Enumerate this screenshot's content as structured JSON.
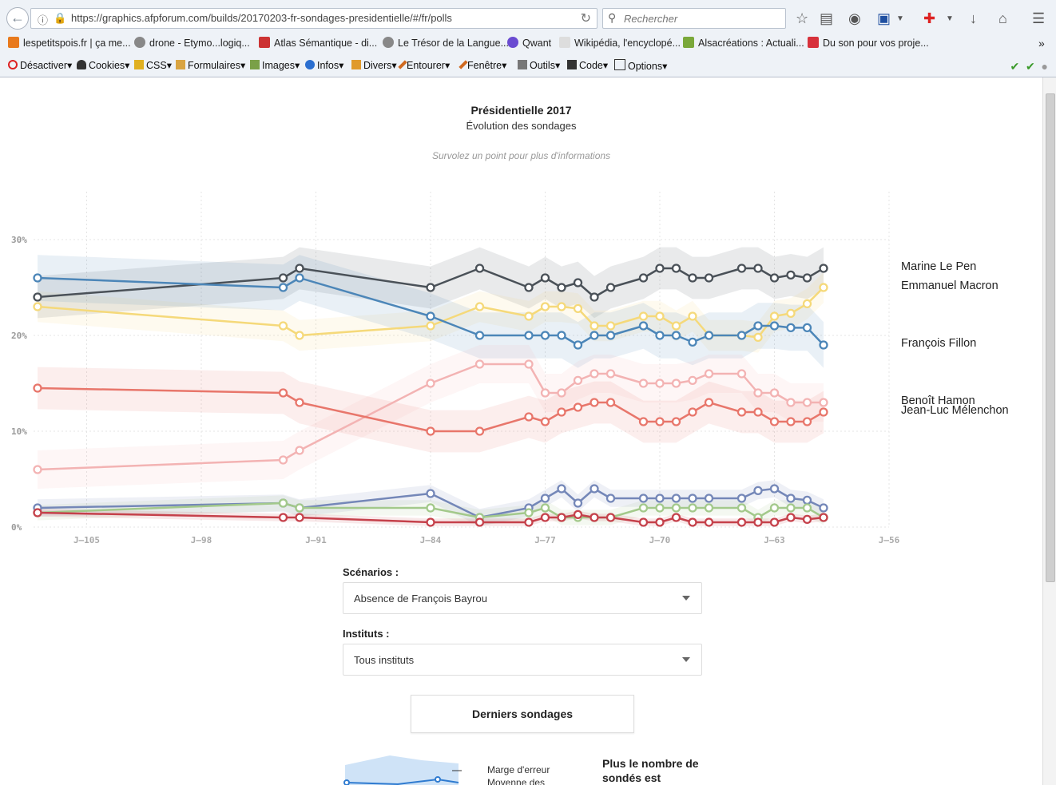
{
  "browser": {
    "url": "https://graphics.afpforum.com/builds/20170203-fr-sondages-presidentielle/#/fr/polls",
    "search_placeholder": "Rechercher",
    "bookmarks": [
      "lespetitspois.fr | ça me...",
      "drone - Etymo...logiq...",
      "Atlas Sémantique - di...",
      "Le Trésor de la Langue...",
      "Qwant",
      "Wikipédia, l'encyclopé...",
      "Alsacréations : Actuali...",
      "Du son pour vos proje..."
    ],
    "dev_menu": [
      "Désactiver",
      "Cookies",
      "CSS",
      "Formulaires",
      "Images",
      "Infos",
      "Divers",
      "Entourer",
      "Fenêtre",
      "Outils",
      "Code",
      "Options"
    ]
  },
  "page": {
    "title": "Présidentielle 2017",
    "subtitle": "Évolution des sondages",
    "hint": "Survolez un point pour plus d'informations",
    "scenarios_label": "Scénarios :",
    "scenarios_value": "Absence de François Bayrou",
    "instituts_label": "Instituts :",
    "instituts_value": "Tous instituts",
    "latest_button": "Derniers sondages",
    "legend_margin": "Marge d'erreur",
    "legend_mean": "Moyenne des",
    "note": "Plus le nombre de sondés est"
  },
  "chart_data": {
    "type": "line",
    "title": "Présidentielle 2017",
    "subtitle": "Évolution des sondages",
    "x_ticks": [
      "J–105",
      "J–98",
      "J–91",
      "J–84",
      "J–77",
      "J–70",
      "J–63",
      "J–56"
    ],
    "x_tick_values": [
      -105,
      -98,
      -91,
      -84,
      -77,
      -70,
      -63,
      -56
    ],
    "y_ticks": [
      "0%",
      "10%",
      "20%",
      "30%"
    ],
    "y_tick_values": [
      0,
      10,
      20,
      30
    ],
    "xlim": [
      -108,
      -56
    ],
    "ylim": [
      0,
      30
    ],
    "grid": true,
    "series": [
      {
        "name": "Marine Le Pen",
        "color": "#4a5158",
        "points": [
          [
            -108,
            24
          ],
          [
            -93,
            26
          ],
          [
            -92,
            27
          ],
          [
            -84,
            25
          ],
          [
            -81,
            27
          ],
          [
            -78,
            25
          ],
          [
            -77,
            26
          ],
          [
            -76,
            25
          ],
          [
            -75,
            25.5
          ],
          [
            -74,
            24
          ],
          [
            -73,
            25
          ],
          [
            -71,
            26
          ],
          [
            -70,
            27
          ],
          [
            -69,
            27
          ],
          [
            -68,
            26
          ],
          [
            -67,
            26
          ],
          [
            -65,
            27
          ],
          [
            -64,
            27
          ],
          [
            -63,
            26
          ],
          [
            -62,
            26.3
          ],
          [
            -61,
            26
          ],
          [
            -60,
            27
          ]
        ],
        "band": 2.2
      },
      {
        "name": "Emmanuel Macron",
        "color": "#f5d97a",
        "points": [
          [
            -108,
            23
          ],
          [
            -93,
            21
          ],
          [
            -92,
            20
          ],
          [
            -84,
            21
          ],
          [
            -81,
            23
          ],
          [
            -78,
            22
          ],
          [
            -77,
            23
          ],
          [
            -76,
            23
          ],
          [
            -75,
            22.8
          ],
          [
            -74,
            21
          ],
          [
            -73,
            21
          ],
          [
            -71,
            22
          ],
          [
            -70,
            22
          ],
          [
            -69,
            21
          ],
          [
            -68,
            22
          ],
          [
            -67,
            20
          ],
          [
            -65,
            20
          ],
          [
            -64,
            19.8
          ],
          [
            -63,
            22
          ],
          [
            -62,
            22.3
          ],
          [
            -61,
            23.3
          ],
          [
            -60,
            25
          ]
        ],
        "band": 1.6
      },
      {
        "name": "François Fillon",
        "color": "#4c86b8",
        "points": [
          [
            -108,
            26
          ],
          [
            -93,
            25
          ],
          [
            -92,
            26
          ],
          [
            -84,
            22
          ],
          [
            -81,
            20
          ],
          [
            -78,
            20
          ],
          [
            -77,
            20
          ],
          [
            -76,
            20
          ],
          [
            -75,
            19
          ],
          [
            -74,
            20
          ],
          [
            -73,
            20
          ],
          [
            -71,
            21
          ],
          [
            -70,
            20
          ],
          [
            -69,
            20
          ],
          [
            -68,
            19.3
          ],
          [
            -67,
            20
          ],
          [
            -65,
            20
          ],
          [
            -64,
            21
          ],
          [
            -63,
            21
          ],
          [
            -62,
            20.8
          ],
          [
            -61,
            20.8
          ],
          [
            -60,
            19
          ]
        ],
        "band": 2.4
      },
      {
        "name": "Benoît Hamon",
        "color": "#f3b3b3",
        "points": [
          [
            -108,
            6
          ],
          [
            -93,
            7
          ],
          [
            -92,
            8
          ],
          [
            -84,
            15
          ],
          [
            -81,
            17
          ],
          [
            -78,
            17
          ],
          [
            -77,
            14
          ],
          [
            -76,
            14
          ],
          [
            -75,
            15.3
          ],
          [
            -74,
            16
          ],
          [
            -73,
            16
          ],
          [
            -71,
            15
          ],
          [
            -70,
            15
          ],
          [
            -69,
            15
          ],
          [
            -68,
            15.3
          ],
          [
            -67,
            16
          ],
          [
            -65,
            16
          ],
          [
            -64,
            14
          ],
          [
            -63,
            14
          ],
          [
            -62,
            13
          ],
          [
            -61,
            13
          ],
          [
            -60,
            13
          ]
        ],
        "band": 2.0
      },
      {
        "name": "Jean-Luc Mélenchon",
        "color": "#e8766b",
        "points": [
          [
            -108,
            14.5
          ],
          [
            -93,
            14
          ],
          [
            -92,
            13
          ],
          [
            -84,
            10
          ],
          [
            -81,
            10
          ],
          [
            -78,
            11.5
          ],
          [
            -77,
            11
          ],
          [
            -76,
            12
          ],
          [
            -75,
            12.5
          ],
          [
            -74,
            13
          ],
          [
            -73,
            13
          ],
          [
            -71,
            11
          ],
          [
            -70,
            11
          ],
          [
            -69,
            11
          ],
          [
            -68,
            12
          ],
          [
            -67,
            13
          ],
          [
            -65,
            12
          ],
          [
            -64,
            12
          ],
          [
            -63,
            11
          ],
          [
            -62,
            11
          ],
          [
            -61,
            11
          ],
          [
            -60,
            12
          ]
        ],
        "band": 2.2
      },
      {
        "name": "",
        "color": "#7487b8",
        "points": [
          [
            -108,
            2
          ],
          [
            -93,
            2.5
          ],
          [
            -92,
            2
          ],
          [
            -84,
            3.5
          ],
          [
            -81,
            1
          ],
          [
            -78,
            2
          ],
          [
            -77,
            3
          ],
          [
            -76,
            4
          ],
          [
            -75,
            2.5
          ],
          [
            -74,
            4
          ],
          [
            -73,
            3
          ],
          [
            -71,
            3
          ],
          [
            -70,
            3
          ],
          [
            -69,
            3
          ],
          [
            -68,
            3
          ],
          [
            -67,
            3
          ],
          [
            -65,
            3
          ],
          [
            -64,
            3.8
          ],
          [
            -63,
            4
          ],
          [
            -62,
            3
          ],
          [
            -61,
            2.8
          ],
          [
            -60,
            2
          ]
        ],
        "band": 0.9
      },
      {
        "name": "",
        "color": "#a3c98b",
        "points": [
          [
            -108,
            1.5
          ],
          [
            -93,
            2.5
          ],
          [
            -92,
            2
          ],
          [
            -84,
            2
          ],
          [
            -81,
            1
          ],
          [
            -78,
            1.5
          ],
          [
            -77,
            2
          ],
          [
            -76,
            1
          ],
          [
            -75,
            1
          ],
          [
            -74,
            1
          ],
          [
            -73,
            1
          ],
          [
            -71,
            2
          ],
          [
            -70,
            2
          ],
          [
            -69,
            2
          ],
          [
            -68,
            2
          ],
          [
            -67,
            2
          ],
          [
            -65,
            2
          ],
          [
            -64,
            1
          ],
          [
            -63,
            2
          ],
          [
            -62,
            2
          ],
          [
            -61,
            2
          ],
          [
            -60,
            1
          ]
        ],
        "band": 0.8
      },
      {
        "name": "",
        "color": "#c5414b",
        "points": [
          [
            -108,
            1.5
          ],
          [
            -93,
            1
          ],
          [
            -92,
            1
          ],
          [
            -84,
            0.5
          ],
          [
            -81,
            0.5
          ],
          [
            -78,
            0.5
          ],
          [
            -77,
            1
          ],
          [
            -76,
            1
          ],
          [
            -75,
            1.3
          ],
          [
            -74,
            1
          ],
          [
            -73,
            1
          ],
          [
            -71,
            0.5
          ],
          [
            -70,
            0.5
          ],
          [
            -69,
            1
          ],
          [
            -68,
            0.5
          ],
          [
            -67,
            0.5
          ],
          [
            -65,
            0.5
          ],
          [
            -64,
            0.5
          ],
          [
            -63,
            0.5
          ],
          [
            -62,
            1
          ],
          [
            -61,
            0.8
          ],
          [
            -60,
            1
          ]
        ],
        "band": 0.4
      }
    ],
    "labels": [
      {
        "text": "Marine Le Pen"
      },
      {
        "text": "Emmanuel Macron"
      },
      {
        "text": "François Fillon"
      },
      {
        "text": "Benoît Hamon"
      },
      {
        "text": "Jean-Luc Mélenchon"
      }
    ]
  }
}
